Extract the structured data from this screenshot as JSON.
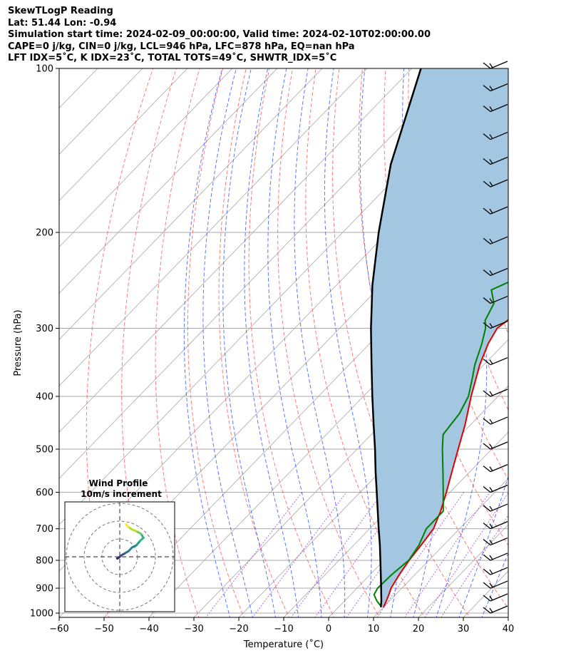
{
  "header": {
    "line1": "SkewTLogP Reading",
    "line2": "Lat: 51.44   Lon: -0.94",
    "line3": "Simulation start time: 2024-02-09_00:00:00, Valid time: 2024-02-10T02:00:00.00",
    "line4": "CAPE=0 j/kg, CIN=0 j/kg, LCL=946 hPa, LFC=878 hPa, EQ=nan hPa",
    "line5": "LFT IDX=5˚C, K IDX=23˚C, TOTAL TOTS=49˚C, SHWTR_IDX=5˚C"
  },
  "chart_data": {
    "type": "line",
    "subtype": "skew-T log-P diagram",
    "xlabel": "Temperature (˚C)",
    "ylabel": "Pressure (hPa)",
    "xlim": [
      -60,
      40
    ],
    "ylim": [
      1050,
      100
    ],
    "yscale": "log",
    "x_ticks": [
      "−60",
      "−50",
      "−40",
      "−30",
      "−20",
      "−10",
      "0",
      "10",
      "20",
      "30",
      "40"
    ],
    "y_ticks": [
      "100",
      "200",
      "300",
      "400",
      "500",
      "600",
      "700",
      "800",
      "900",
      "1000"
    ],
    "grid": true,
    "colors": {
      "temperature": "#e00000",
      "dewpoint": "#008000",
      "parcel": "#000000",
      "shading": "#a3c7e0",
      "dry_adiabats": "#ff4d4d",
      "moist_adiabats": "#3355ff",
      "mixing_ratio": "#9933cc",
      "isotherms": "#a8a8a8"
    },
    "series": [
      {
        "key": "temperature",
        "p": [
          975,
          950,
          925,
          900,
          850,
          800,
          750,
          700,
          650,
          600,
          550,
          500,
          450,
          400,
          350,
          320,
          300,
          290,
          270,
          260,
          250,
          240,
          230,
          220,
          200,
          185,
          165,
          150,
          140,
          130,
          120,
          110,
          100
        ],
        "t": [
          10,
          9.3,
          8.5,
          7.6,
          6.5,
          5.6,
          5.0,
          4.2,
          2.0,
          -0.8,
          -4.0,
          -7.5,
          -11.3,
          -16.0,
          -20.9,
          -23.6,
          -24.9,
          -24.3,
          -22.6,
          -21.8,
          -20.0,
          -18.0,
          -16.0,
          -14.5,
          -11.7,
          -9.5,
          -6.0,
          -4.3,
          -2.8,
          -1.8,
          -0.6,
          0.2,
          1.0
        ]
      },
      {
        "key": "dewpoint",
        "p": [
          975,
          950,
          925,
          900,
          850,
          800,
          750,
          700,
          650,
          600,
          550,
          500,
          470,
          430,
          400,
          370,
          350,
          320,
          300,
          290,
          270,
          255,
          240,
          220,
          200,
          185,
          170,
          160,
          150,
          140,
          130,
          120,
          110,
          100
        ],
        "t": [
          9.6,
          7.2,
          5.2,
          4.6,
          4.8,
          5.5,
          4.5,
          2.6,
          2.6,
          -1.5,
          -6.0,
          -11.0,
          -14.0,
          -14.9,
          -16.6,
          -19.7,
          -22.0,
          -25.0,
          -27.5,
          -29.3,
          -31.0,
          -34.5,
          -30.5,
          -30.9,
          -35.5,
          -38.0,
          -40.8,
          -39.0,
          -36.6,
          -35.3,
          -33.5,
          -31.5,
          -30.0,
          -28.3
        ]
      },
      {
        "key": "parcel",
        "p": [
          975,
          950,
          925,
          900,
          850,
          800,
          750,
          700,
          650,
          600,
          550,
          500,
          450,
          400,
          350,
          300,
          250,
          200,
          150,
          100
        ],
        "t": [
          9.4,
          8.2,
          6.8,
          5.4,
          2.4,
          -0.8,
          -4.2,
          -8.0,
          -12.0,
          -16.3,
          -21.0,
          -26.0,
          -31.7,
          -38.0,
          -45.0,
          -53.0,
          -62.0,
          -72.0,
          -84.0,
          -98.0
        ]
      }
    ],
    "wind_barbs": {
      "pressures": [
        1000,
        950,
        900,
        850,
        800,
        750,
        700,
        650,
        600,
        550,
        500,
        450,
        400,
        350,
        300,
        270,
        240,
        210,
        185,
        165,
        150,
        135,
        120,
        110,
        100
      ]
    },
    "inset": {
      "title": "Wind Profile",
      "subtitle": "10m/s increment",
      "rings": 3,
      "hodograph_colormap": "viridis"
    }
  }
}
